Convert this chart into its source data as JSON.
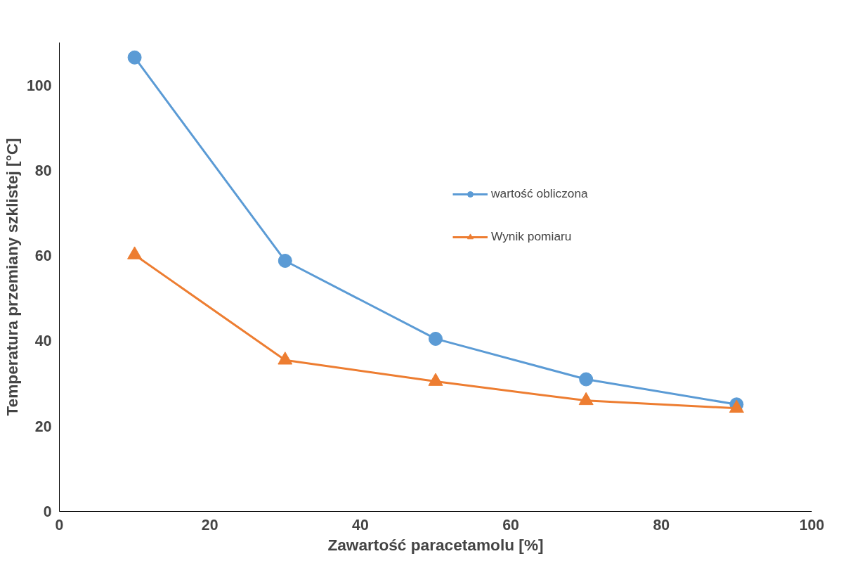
{
  "chart_data": {
    "type": "line",
    "xlabel": "Zawartość paracetamolu [%]",
    "ylabel": "Temperatura przemiany szklistej [°C]",
    "x": [
      10,
      30,
      50,
      70,
      90
    ],
    "series": [
      {
        "name": "wartość obliczona",
        "color": "#5b9bd5",
        "marker": "circle",
        "values": [
          106.5,
          58.8,
          40.5,
          31.0,
          25.1
        ]
      },
      {
        "name": "Wynik pomiaru",
        "color": "#ed7d31",
        "marker": "triangle",
        "values": [
          60.2,
          35.5,
          30.5,
          26.0,
          24.2
        ]
      }
    ],
    "xlim": [
      0,
      100
    ],
    "xticks": [
      0,
      20,
      40,
      60,
      80,
      100
    ],
    "ylim": [
      0,
      110
    ],
    "yticks": [
      0,
      20,
      40,
      60,
      80,
      100
    ],
    "grid": false,
    "legend": "right",
    "line_style": "solid"
  }
}
